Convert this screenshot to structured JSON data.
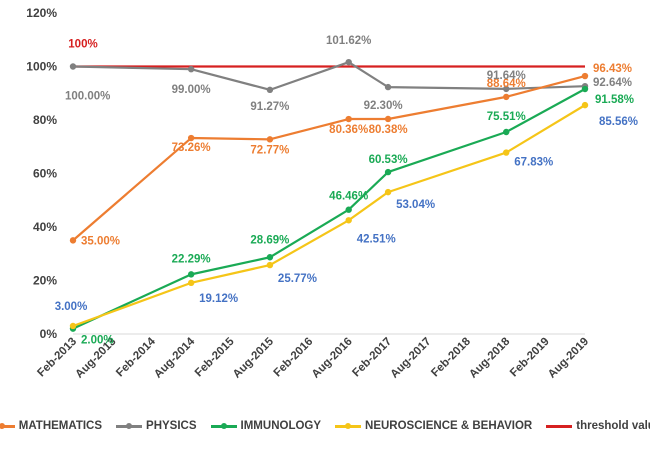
{
  "chart_data": {
    "type": "line",
    "title": "",
    "xlabel": "",
    "ylabel": "",
    "x_ticks": [
      "Feb-2013",
      "Aug-2013",
      "Feb-2014",
      "Aug-2014",
      "Feb-2015",
      "Aug-2015",
      "Feb-2016",
      "Aug-2016",
      "Feb-2017",
      "Aug-2017",
      "Feb-2018",
      "Aug-2018",
      "Feb-2019",
      "Aug-2019"
    ],
    "y_ticks": [
      "0%",
      "20%",
      "40%",
      "60%",
      "80%",
      "100%",
      "120%"
    ],
    "ylim": [
      0,
      120
    ],
    "grid": false,
    "legend_position": "bottom",
    "series": [
      {
        "name": "MATHEMATICS",
        "color": "#ED7D31",
        "points": [
          {
            "x": "Feb-2013",
            "y": 35.0,
            "label": "35.00%"
          },
          {
            "x": "Aug-2014",
            "y": 73.26,
            "label": "73.26%"
          },
          {
            "x": "Aug-2015",
            "y": 72.77,
            "label": "72.77%"
          },
          {
            "x": "Aug-2016",
            "y": 80.36,
            "label": "80.36%"
          },
          {
            "x": "Feb-2017",
            "y": 80.38,
            "label": "80.38%"
          },
          {
            "x": "Aug-2018",
            "y": 88.64,
            "label": "88.64%"
          },
          {
            "x": "Aug-2019",
            "y": 96.43,
            "label": "96.43%"
          }
        ]
      },
      {
        "name": "PHYSICS",
        "color": "#808080",
        "points": [
          {
            "x": "Feb-2013",
            "y": 100.0,
            "label": "100.00%"
          },
          {
            "x": "Aug-2014",
            "y": 99.0,
            "label": "99.00%"
          },
          {
            "x": "Aug-2015",
            "y": 91.27,
            "label": "91.27%"
          },
          {
            "x": "Aug-2016",
            "y": 101.62,
            "label": "101.62%"
          },
          {
            "x": "Feb-2017",
            "y": 92.3,
            "label": "92.30%"
          },
          {
            "x": "Aug-2018",
            "y": 91.64,
            "label": "91.64%"
          },
          {
            "x": "Aug-2019",
            "y": 92.64,
            "label": "92.64%"
          }
        ]
      },
      {
        "name": "IMMUNOLOGY",
        "color": "#1AAA55",
        "points": [
          {
            "x": "Feb-2013",
            "y": 2.0,
            "label": "2.00%"
          },
          {
            "x": "Aug-2014",
            "y": 22.29,
            "label": "22.29%"
          },
          {
            "x": "Aug-2015",
            "y": 28.69,
            "label": "28.69%"
          },
          {
            "x": "Aug-2016",
            "y": 46.46,
            "label": "46.46%"
          },
          {
            "x": "Feb-2017",
            "y": 60.53,
            "label": "60.53%"
          },
          {
            "x": "Aug-2018",
            "y": 75.51,
            "label": "75.51%"
          },
          {
            "x": "Aug-2019",
            "y": 91.58,
            "label": "91.58%"
          }
        ]
      },
      {
        "name": "NEUROSCIENCE & BEHAVIOR",
        "color": "#F5C518",
        "label_color": "#4472C4",
        "points": [
          {
            "x": "Feb-2013",
            "y": 3.0,
            "label": "3.00%"
          },
          {
            "x": "Aug-2014",
            "y": 19.12,
            "label": "19.12%"
          },
          {
            "x": "Aug-2015",
            "y": 25.77,
            "label": "25.77%"
          },
          {
            "x": "Aug-2016",
            "y": 42.51,
            "label": "42.51%"
          },
          {
            "x": "Feb-2017",
            "y": 53.04,
            "label": "53.04%"
          },
          {
            "x": "Aug-2018",
            "y": 67.83,
            "label": "67.83%"
          },
          {
            "x": "Aug-2019",
            "y": 85.56,
            "label": "85.56%"
          }
        ]
      },
      {
        "name": "threshold value",
        "color": "#D62020",
        "no_markers": true,
        "points": [
          {
            "x": "Feb-2013",
            "y": 100,
            "label": "100%"
          },
          {
            "x": "Aug-2019",
            "y": 100,
            "label": ""
          }
        ]
      }
    ]
  }
}
